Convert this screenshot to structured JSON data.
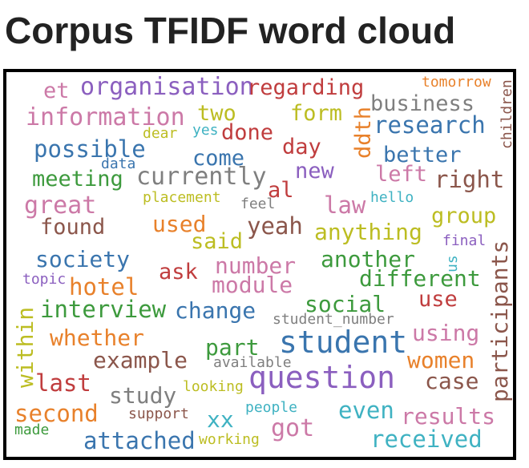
{
  "header": {
    "title": "Corpus TFIDF word cloud"
  },
  "colors": {
    "pink": "#cc79a7",
    "purple": "#8b5fbf",
    "red": "#c03d3e",
    "orange": "#e8812b",
    "olive": "#bcbd22",
    "grey": "#7f7f7f",
    "blue": "#3a75ae",
    "cyan": "#3fb2c2",
    "green": "#3d9a3d",
    "brown": "#8b564b"
  },
  "cloud": {
    "words": [
      {
        "text": "et",
        "color": "pink"
      },
      {
        "text": "organisation",
        "color": "purple"
      },
      {
        "text": "regarding",
        "color": "red"
      },
      {
        "text": "tomorrow",
        "color": "orange"
      },
      {
        "text": "information",
        "color": "pink"
      },
      {
        "text": "two",
        "color": "olive"
      },
      {
        "text": "form",
        "color": "olive"
      },
      {
        "text": "business",
        "color": "grey"
      },
      {
        "text": "dear",
        "color": "olive"
      },
      {
        "text": "yes",
        "color": "cyan"
      },
      {
        "text": "done",
        "color": "red"
      },
      {
        "text": "ddth",
        "color": "orange"
      },
      {
        "text": "research",
        "color": "blue"
      },
      {
        "text": "children",
        "color": "brown"
      },
      {
        "text": "possible",
        "color": "blue"
      },
      {
        "text": "day",
        "color": "red"
      },
      {
        "text": "come",
        "color": "blue"
      },
      {
        "text": "better",
        "color": "blue"
      },
      {
        "text": "data",
        "color": "blue"
      },
      {
        "text": "new",
        "color": "purple"
      },
      {
        "text": "meeting",
        "color": "green"
      },
      {
        "text": "currently",
        "color": "grey"
      },
      {
        "text": "left",
        "color": "pink"
      },
      {
        "text": "right",
        "color": "brown"
      },
      {
        "text": "al",
        "color": "red"
      },
      {
        "text": "great",
        "color": "pink"
      },
      {
        "text": "placement",
        "color": "olive"
      },
      {
        "text": "feel",
        "color": "grey"
      },
      {
        "text": "law",
        "color": "pink"
      },
      {
        "text": "hello",
        "color": "cyan"
      },
      {
        "text": "found",
        "color": "brown"
      },
      {
        "text": "used",
        "color": "orange"
      },
      {
        "text": "yeah",
        "color": "brown"
      },
      {
        "text": "group",
        "color": "olive"
      },
      {
        "text": "anything",
        "color": "olive"
      },
      {
        "text": "said",
        "color": "olive"
      },
      {
        "text": "final",
        "color": "purple"
      },
      {
        "text": "society",
        "color": "blue"
      },
      {
        "text": "number",
        "color": "pink"
      },
      {
        "text": "another",
        "color": "green"
      },
      {
        "text": "us",
        "color": "cyan"
      },
      {
        "text": "participants",
        "color": "brown"
      },
      {
        "text": "ask",
        "color": "red"
      },
      {
        "text": "topic",
        "color": "purple"
      },
      {
        "text": "hotel",
        "color": "orange"
      },
      {
        "text": "module",
        "color": "pink"
      },
      {
        "text": "different",
        "color": "green"
      },
      {
        "text": "within",
        "color": "olive"
      },
      {
        "text": "interview",
        "color": "green"
      },
      {
        "text": "change",
        "color": "blue"
      },
      {
        "text": "social",
        "color": "green"
      },
      {
        "text": "use",
        "color": "red"
      },
      {
        "text": "student_number",
        "color": "grey"
      },
      {
        "text": "whether",
        "color": "orange"
      },
      {
        "text": "student",
        "color": "blue"
      },
      {
        "text": "using",
        "color": "pink"
      },
      {
        "text": "part",
        "color": "green"
      },
      {
        "text": "example",
        "color": "brown"
      },
      {
        "text": "available",
        "color": "grey"
      },
      {
        "text": "women",
        "color": "orange"
      },
      {
        "text": "last",
        "color": "red"
      },
      {
        "text": "question",
        "color": "purple"
      },
      {
        "text": "case",
        "color": "brown"
      },
      {
        "text": "study",
        "color": "grey"
      },
      {
        "text": "looking",
        "color": "olive"
      },
      {
        "text": "second",
        "color": "orange"
      },
      {
        "text": "support",
        "color": "brown"
      },
      {
        "text": "xx",
        "color": "cyan"
      },
      {
        "text": "people",
        "color": "cyan"
      },
      {
        "text": "even",
        "color": "cyan"
      },
      {
        "text": "results",
        "color": "pink"
      },
      {
        "text": "made",
        "color": "green"
      },
      {
        "text": "got",
        "color": "pink"
      },
      {
        "text": "attached",
        "color": "blue"
      },
      {
        "text": "working",
        "color": "olive"
      },
      {
        "text": "received",
        "color": "cyan"
      }
    ]
  }
}
